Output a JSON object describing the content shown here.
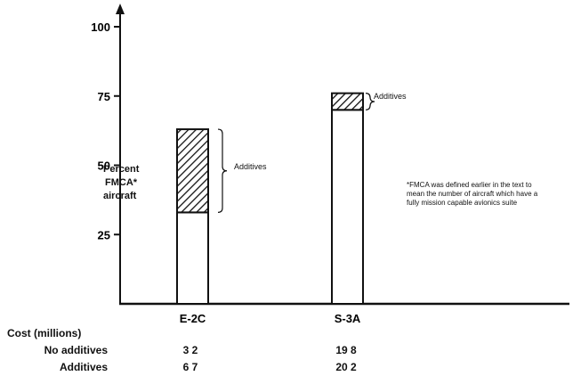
{
  "chart_data": {
    "type": "bar",
    "categories": [
      "E-2C",
      "S-3A"
    ],
    "series": [
      {
        "values": [
          33,
          70
        ]
      },
      {
        "name": "Additives",
        "values": [
          30,
          6
        ]
      }
    ],
    "ylabel": [
      "Percent",
      "FMCA*",
      "aircraft"
    ],
    "yticks": [
      25,
      50,
      75,
      100
    ],
    "ylim": [
      0,
      105
    ],
    "stacked": true,
    "top_segment_pattern": "diagonal-hatch",
    "grid": false,
    "footnote": "*FMCA was defined earlier in the text to mean the number of aircraft which have a fully mission capable avionics suite"
  },
  "cost_table": {
    "header": "Cost (millions)",
    "rows": [
      {
        "label": "No additives",
        "values": [
          "3 2",
          "19 8"
        ]
      },
      {
        "label": "Additives",
        "values": [
          "6 7",
          "20 2"
        ]
      }
    ]
  }
}
